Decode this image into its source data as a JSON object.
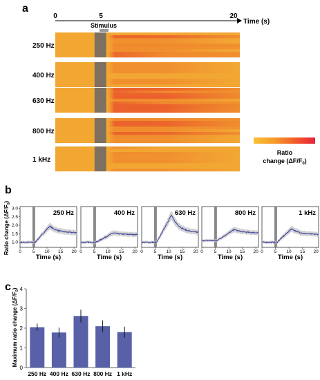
{
  "panels": {
    "a": "a",
    "b": "b",
    "c": "c"
  },
  "heatmap": {
    "time_axis_label": "Time (s)",
    "time_ticks": [
      "0",
      "5",
      "20"
    ],
    "time_tick_values": [
      0,
      5,
      20
    ],
    "time_range": [
      0,
      20
    ],
    "stimulus_label": "Stimulus",
    "stimulus_window": [
      4.4,
      5.4
    ],
    "rows": [
      {
        "label": "250 Hz"
      },
      {
        "label": "400 Hz"
      },
      {
        "label": "630 Hz"
      },
      {
        "label": "800 Hz"
      },
      {
        "label": "1 kHz"
      }
    ],
    "colorbar": {
      "label_line1": "Ratio",
      "label_line2": "change (ΔF/F",
      "label_sub": "0",
      "label_end": ")",
      "colors": [
        "#f9c232",
        "#f6982a",
        "#f0562a",
        "#e8233a"
      ]
    },
    "colors": {
      "base": "#f2a733",
      "warm": "#ee7a2a",
      "hot": "#e94c2a",
      "stimulus_bar": "#7d7060"
    }
  },
  "traces": {
    "ylabel": "Ratio change (ΔF/F",
    "ylabel_sub": "0",
    "ylabel_end": ")",
    "xlabel": "Time (s)",
    "yticks": [
      "1.0",
      "1.5",
      "2.0",
      "2.5",
      "3.0"
    ],
    "ytick_values": [
      1.0,
      1.5,
      2.0,
      2.5,
      3.0
    ],
    "ylim": [
      0.7,
      3.1
    ],
    "xticks": [
      "0",
      "5",
      "10",
      "15",
      "20"
    ],
    "xtick_values": [
      0,
      5,
      10,
      15,
      20
    ],
    "xlim": [
      0,
      21
    ],
    "stimulus_window": [
      4.6,
      5.6
    ],
    "line_color": "#3b3f9c",
    "band_color": "#c8c8c8",
    "panels": [
      {
        "label": "250 Hz",
        "baseline": 1.0,
        "peak": 1.95,
        "peak_t": 11,
        "end": 1.55
      },
      {
        "label": "400 Hz",
        "baseline": 1.0,
        "peak": 1.55,
        "peak_t": 12,
        "end": 1.45
      },
      {
        "label": "630 Hz",
        "baseline": 1.0,
        "peak": 2.6,
        "peak_t": 11,
        "end": 1.55
      },
      {
        "label": "800 Hz",
        "baseline": 1.1,
        "peak": 1.75,
        "peak_t": 12,
        "end": 1.55
      },
      {
        "label": "1 kHz",
        "baseline": 1.0,
        "peak": 1.8,
        "peak_t": 11,
        "end": 1.45
      }
    ]
  },
  "chart_data": {
    "type": "bar",
    "categories": [
      "250 Hz",
      "400 Hz",
      "630 Hz",
      "800 Hz",
      "1 kHz"
    ],
    "values": [
      2.05,
      1.78,
      2.62,
      2.1,
      1.8
    ],
    "errors": [
      0.18,
      0.25,
      0.32,
      0.3,
      0.28
    ],
    "title": "",
    "xlabel": "",
    "ylabel": "Maximum ratio change (ΔF/F",
    "ylabel_sub": "0",
    "ylabel_end": ")",
    "ylim": [
      0,
      4
    ],
    "yticks": [
      "0",
      "1",
      "2",
      "3",
      "4"
    ],
    "ytick_values": [
      0,
      1,
      2,
      3,
      4
    ],
    "bar_color": "#5860a8",
    "grid": false
  }
}
